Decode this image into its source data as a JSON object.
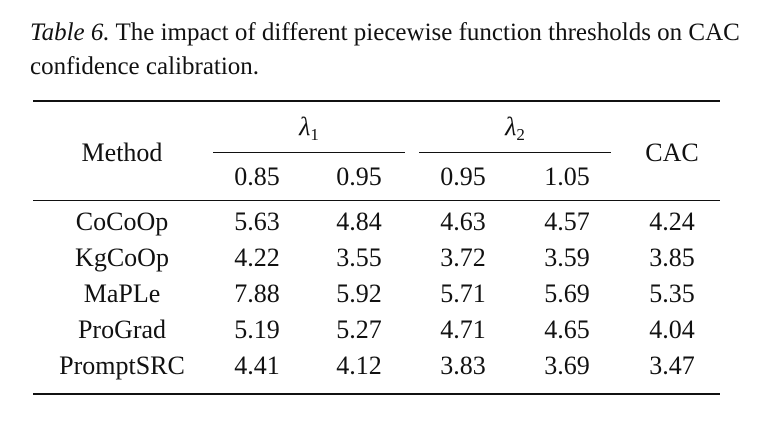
{
  "caption": {
    "label": "Table 6.",
    "text": " The impact of different piecewise function thresholds on CAC confidence calibration."
  },
  "table": {
    "method_header": "Method",
    "group1": {
      "symbol": "λ",
      "subscript": "1",
      "columns": [
        "0.85",
        "0.95"
      ]
    },
    "group2": {
      "symbol": "λ",
      "subscript": "2",
      "columns": [
        "0.95",
        "1.05"
      ]
    },
    "cac_header": "CAC",
    "rows": [
      {
        "method": "CoCoOp",
        "values": [
          "5.63",
          "4.84",
          "4.63",
          "4.57",
          "4.24"
        ]
      },
      {
        "method": "KgCoOp",
        "values": [
          "4.22",
          "3.55",
          "3.72",
          "3.59",
          "3.85"
        ]
      },
      {
        "method": "MaPLe",
        "values": [
          "7.88",
          "5.92",
          "5.71",
          "5.69",
          "5.35"
        ]
      },
      {
        "method": "ProGrad",
        "values": [
          "5.19",
          "5.27",
          "4.71",
          "4.65",
          "4.04"
        ]
      },
      {
        "method": "PromptSRC",
        "values": [
          "4.41",
          "4.12",
          "3.83",
          "3.69",
          "3.47"
        ]
      }
    ]
  }
}
